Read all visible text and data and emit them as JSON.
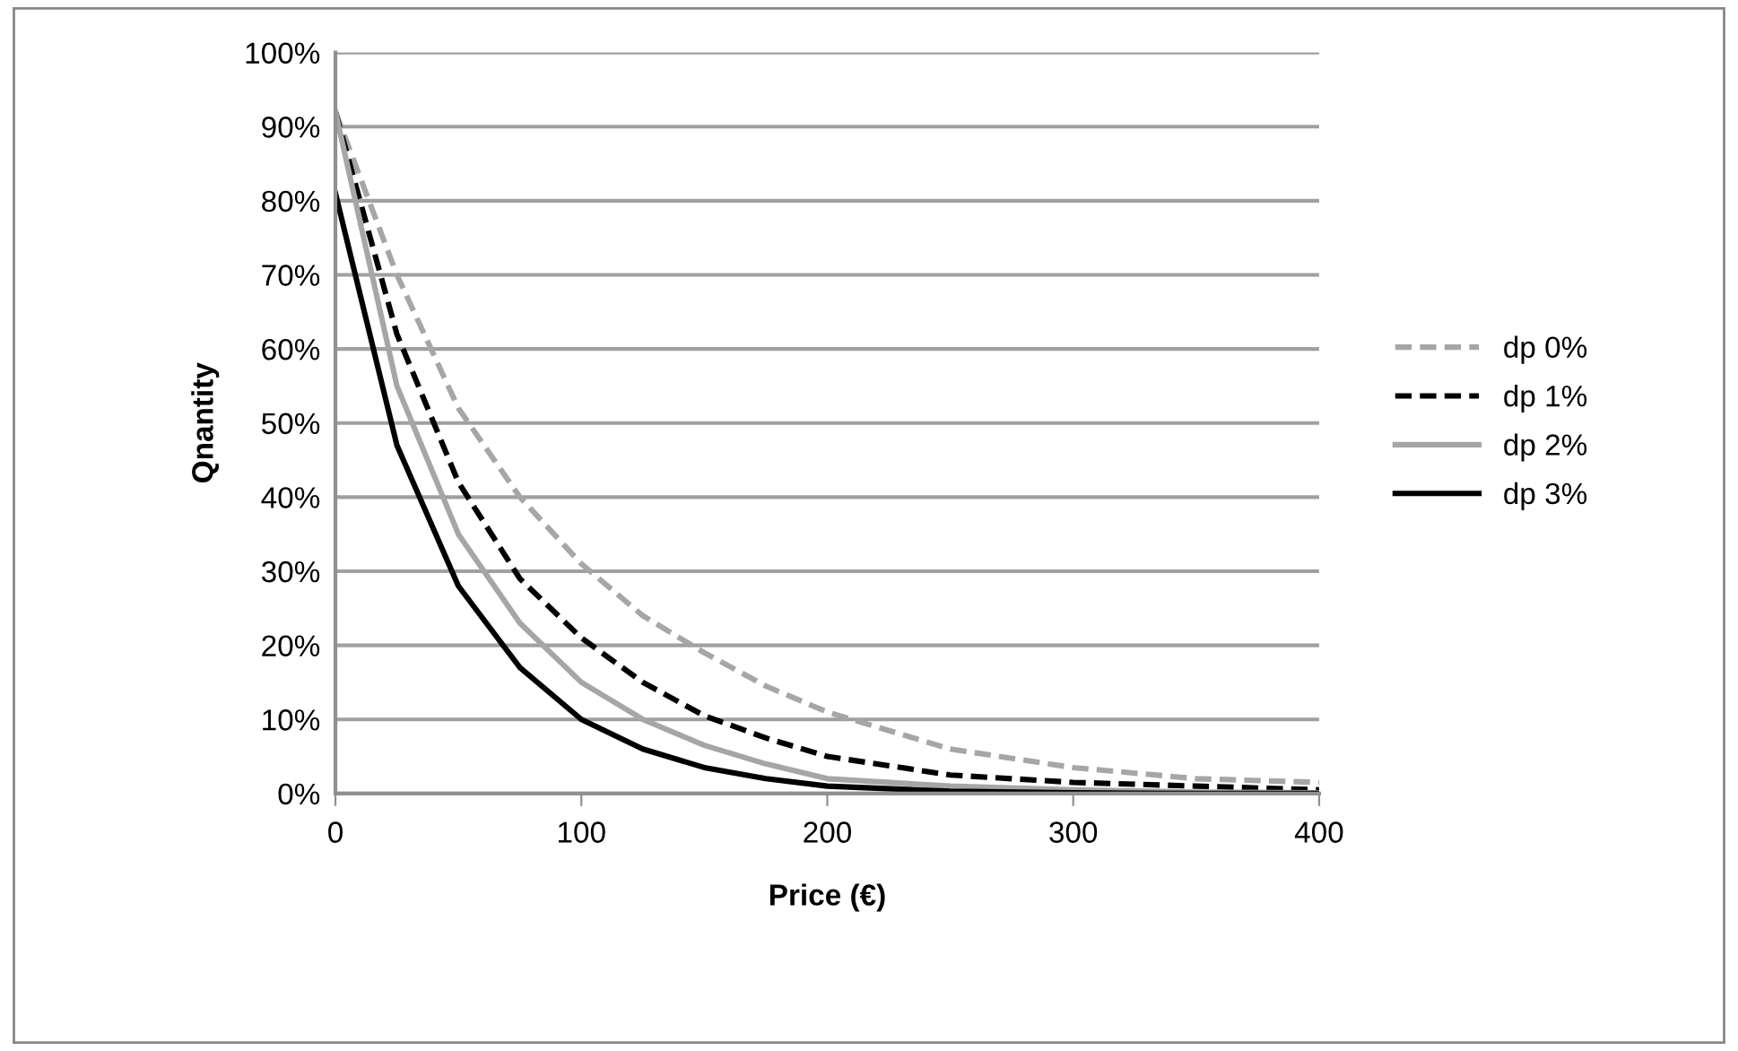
{
  "chart_data": {
    "type": "line",
    "xlabel": "Price (€)",
    "ylabel": "Qnantity",
    "x": [
      0,
      25,
      50,
      75,
      100,
      125,
      150,
      175,
      200,
      250,
      300,
      350,
      400
    ],
    "series": [
      {
        "name": "dp 0%",
        "color": "#a6a6a6",
        "line_style": "dashed",
        "values": [
          92,
          70,
          52,
          40,
          31,
          24,
          19,
          14.5,
          11,
          6,
          3.5,
          2,
          1.5
        ]
      },
      {
        "name": "dp 1%",
        "color": "#000000",
        "line_style": "dashed",
        "values": [
          92,
          62,
          42,
          29,
          21,
          15,
          10.5,
          7.5,
          5,
          2.5,
          1.5,
          1,
          0.5
        ]
      },
      {
        "name": "dp 2%",
        "color": "#a6a6a6",
        "line_style": "solid",
        "values": [
          92,
          55,
          35,
          23,
          15,
          10,
          6.5,
          4,
          2,
          1,
          0.5,
          0.2,
          0.1
        ]
      },
      {
        "name": "dp 3%",
        "color": "#000000",
        "line_style": "solid",
        "values": [
          81,
          47,
          28,
          17,
          10,
          6,
          3.5,
          2,
          1,
          0.3,
          0.1,
          0,
          0
        ]
      }
    ],
    "xlim": [
      0,
      400
    ],
    "xticks": [
      0,
      100,
      200,
      300,
      400
    ],
    "ylim": [
      0,
      100
    ],
    "yticks": [
      {
        "value": 0,
        "label": "0%"
      },
      {
        "value": 10,
        "label": "10%"
      },
      {
        "value": 20,
        "label": "20%"
      },
      {
        "value": 30,
        "label": "30%"
      },
      {
        "value": 40,
        "label": "40%"
      },
      {
        "value": 50,
        "label": "50%"
      },
      {
        "value": 60,
        "label": "60%"
      },
      {
        "value": 70,
        "label": "70%"
      },
      {
        "value": 80,
        "label": "80%"
      },
      {
        "value": 90,
        "label": "90%"
      },
      {
        "value": 100,
        "label": "100%"
      }
    ],
    "grid": "y",
    "legend": "right",
    "marker": "none"
  }
}
